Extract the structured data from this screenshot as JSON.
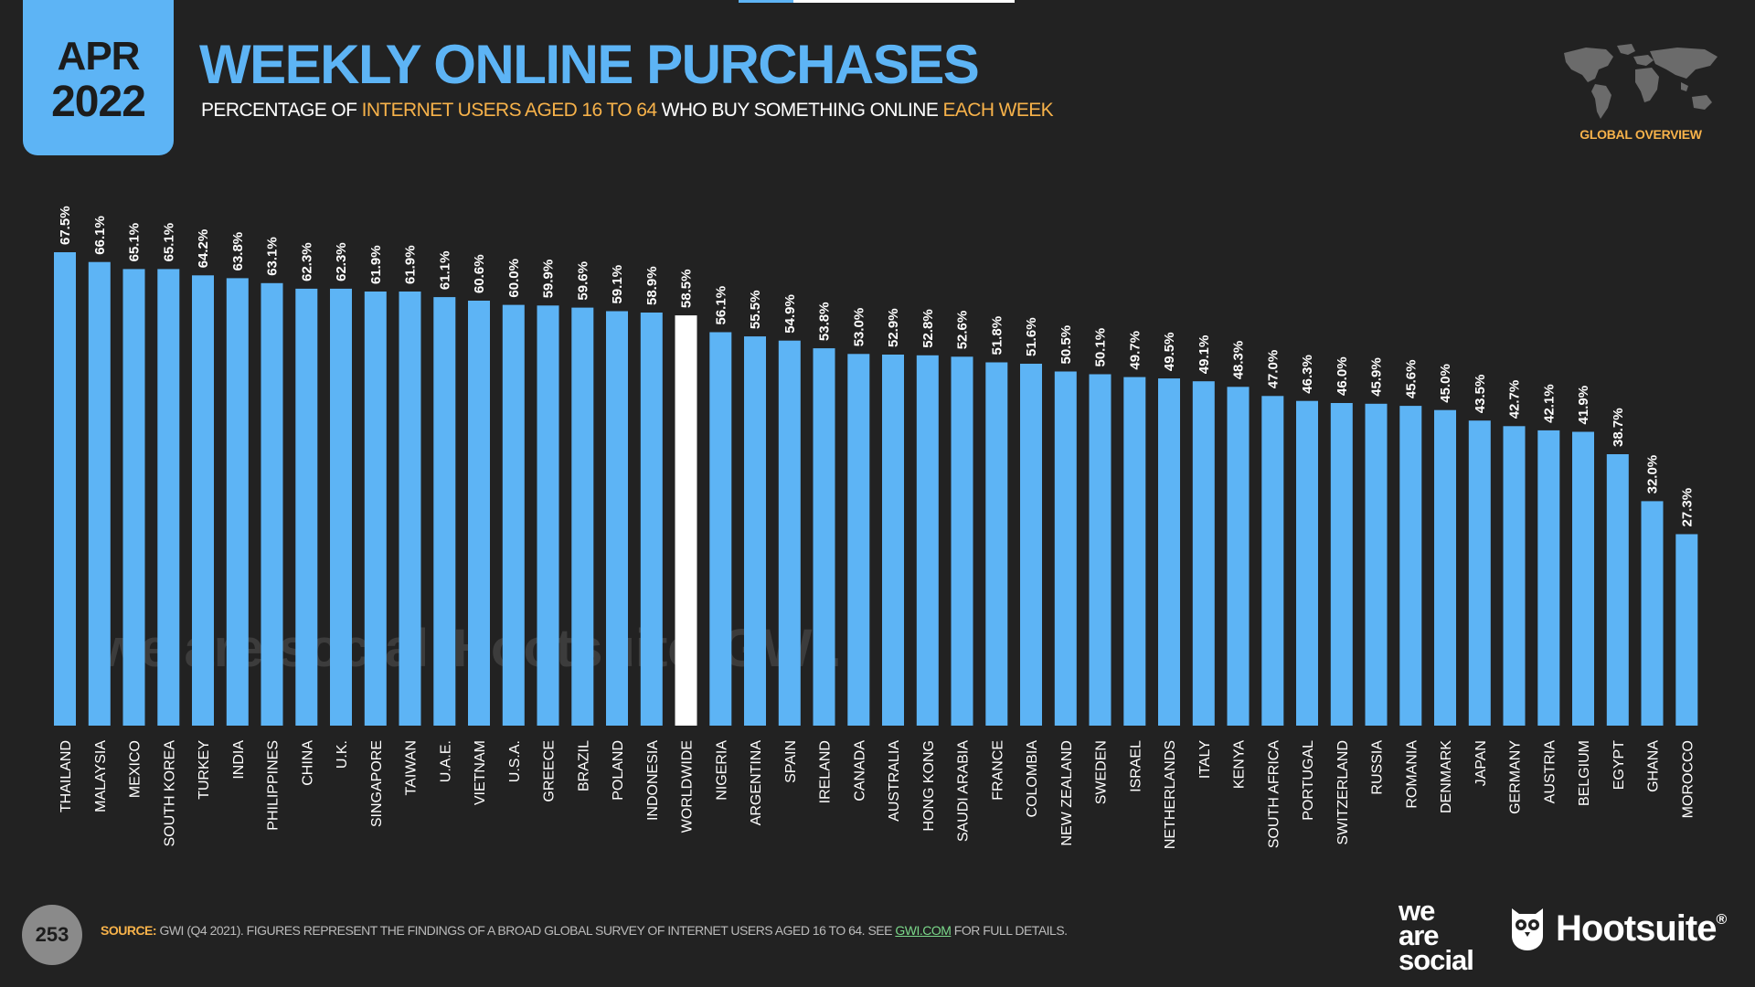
{
  "badge": {
    "month": "APR",
    "year": "2022"
  },
  "header": {
    "title": "WEEKLY ONLINE PURCHASES",
    "subtitle_parts": [
      "PERCENTAGE OF ",
      "INTERNET USERS AGED 16 TO 64",
      " WHO BUY SOMETHING ONLINE ",
      "EACH WEEK"
    ]
  },
  "global_overview": "GLOBAL OVERVIEW",
  "watermark": {
    "parts": [
      "we are social",
      "Hootsuite",
      "GWI."
    ]
  },
  "footer": {
    "page_number": "253",
    "source_label": "SOURCE:",
    "source_text": " GWI (Q4 2021). FIGURES REPRESENT THE FINDINGS OF A BROAD GLOBAL SURVEY OF INTERNET USERS AGED 16 TO 64. SEE ",
    "source_link": "GWI.COM",
    "source_tail": " FOR FULL DETAILS.",
    "brand_was": [
      "we",
      "are",
      "social"
    ],
    "brand_hootsuite": "Hootsuite",
    "brand_reg": "®"
  },
  "colors": {
    "background": "#222222",
    "bar": "#5db4f5",
    "highlight_bar": "#ffffff",
    "accent": "#f7b24a"
  },
  "chart_data": {
    "type": "bar",
    "title": "WEEKLY ONLINE PURCHASES",
    "ylabel": "",
    "xlabel": "",
    "ylim": [
      0,
      80
    ],
    "grid": false,
    "highlight_category": "WORLDWIDE",
    "categories": [
      "THAILAND",
      "MALAYSIA",
      "MEXICO",
      "SOUTH KOREA",
      "TURKEY",
      "INDIA",
      "PHILIPPINES",
      "CHINA",
      "U.K.",
      "SINGAPORE",
      "TAIWAN",
      "U.A.E.",
      "VIETNAM",
      "U.S.A.",
      "GREECE",
      "BRAZIL",
      "POLAND",
      "INDONESIA",
      "WORLDWIDE",
      "NIGERIA",
      "ARGENTINA",
      "SPAIN",
      "IRELAND",
      "CANADA",
      "AUSTRALIA",
      "HONG KONG",
      "SAUDI ARABIA",
      "FRANCE",
      "COLOMBIA",
      "NEW ZEALAND",
      "SWEDEN",
      "ISRAEL",
      "NETHERLANDS",
      "ITALY",
      "KENYA",
      "SOUTH AFRICA",
      "PORTUGAL",
      "SWITZERLAND",
      "RUSSIA",
      "ROMANIA",
      "DENMARK",
      "JAPAN",
      "GERMANY",
      "AUSTRIA",
      "BELGIUM",
      "EGYPT",
      "GHANA",
      "MOROCCO"
    ],
    "values": [
      67.5,
      66.1,
      65.1,
      65.1,
      64.2,
      63.8,
      63.1,
      62.3,
      62.3,
      61.9,
      61.9,
      61.1,
      60.6,
      60.0,
      59.9,
      59.6,
      59.1,
      58.9,
      58.5,
      56.1,
      55.5,
      54.9,
      53.8,
      53.0,
      52.9,
      52.8,
      52.6,
      51.8,
      51.6,
      50.5,
      50.1,
      49.7,
      49.5,
      49.1,
      48.3,
      47.0,
      46.3,
      46.0,
      45.9,
      45.6,
      45.0,
      43.5,
      42.7,
      42.1,
      41.9,
      38.7,
      32.0,
      27.3
    ],
    "value_labels": [
      "67.5%",
      "66.1%",
      "65.1%",
      "65.1%",
      "64.2%",
      "63.8%",
      "63.1%",
      "62.3%",
      "62.3%",
      "61.9%",
      "61.9%",
      "61.1%",
      "60.6%",
      "60.0%",
      "59.9%",
      "59.6%",
      "59.1%",
      "58.9%",
      "58.5%",
      "56.1%",
      "55.5%",
      "54.9%",
      "53.8%",
      "53.0%",
      "52.9%",
      "52.8%",
      "52.6%",
      "51.8%",
      "51.6%",
      "50.5%",
      "50.1%",
      "49.7%",
      "49.5%",
      "49.1%",
      "48.3%",
      "47.0%",
      "46.3%",
      "46.0%",
      "45.9%",
      "45.6%",
      "45.0%",
      "43.5%",
      "42.7%",
      "42.1%",
      "41.9%",
      "38.7%",
      "32.0%",
      "27.3%"
    ]
  }
}
